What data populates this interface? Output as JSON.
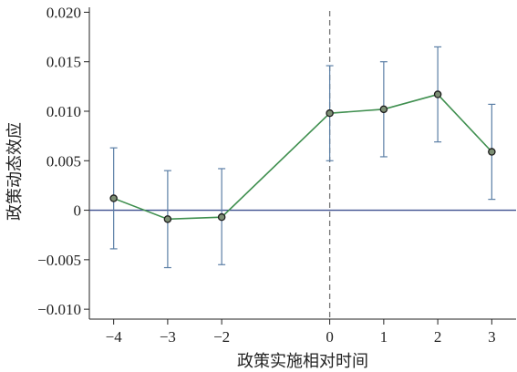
{
  "chart_data": {
    "type": "line",
    "title": "",
    "xlabel": "政策实施相对时间",
    "ylabel": "政策动态效应",
    "x": [
      -4,
      -3,
      -2,
      0,
      1,
      2,
      3
    ],
    "x_ticks": [
      -4,
      -3,
      -2,
      0,
      1,
      2,
      3
    ],
    "x_tick_labels": [
      "−4",
      "−3",
      "−2",
      "0",
      "1",
      "2",
      "3"
    ],
    "y_ticks": [
      0.02,
      0.015,
      0.01,
      0.005,
      0,
      -0.005,
      -0.01
    ],
    "y_tick_labels": [
      "0.020",
      "0.015",
      "0.010",
      "0.005",
      "0",
      "−0.005",
      "−0.010"
    ],
    "xlim": [
      -4.45,
      3.45
    ],
    "ylim": [
      -0.011,
      0.0205
    ],
    "series": [
      {
        "values": [
          0.0012,
          -0.0009,
          -0.0007,
          0.0098,
          0.0102,
          0.0117,
          0.0059
        ],
        "ci_lower": [
          -0.0039,
          -0.0058,
          -0.0055,
          0.005,
          0.0054,
          0.0069,
          0.0011
        ],
        "ci_upper": [
          0.0063,
          0.004,
          0.0042,
          0.0146,
          0.015,
          0.0165,
          0.0107
        ]
      }
    ],
    "reference_lines": {
      "horizontal_y": 0,
      "vertical_x": 0
    },
    "colors": {
      "line": "#3f8f4f",
      "error_bar": "#5b7fa6",
      "zero_line": "#3d4f8f",
      "vertical_line": "#777777",
      "marker_fill": "#7d8f74"
    },
    "grid": false,
    "legend": "none"
  }
}
